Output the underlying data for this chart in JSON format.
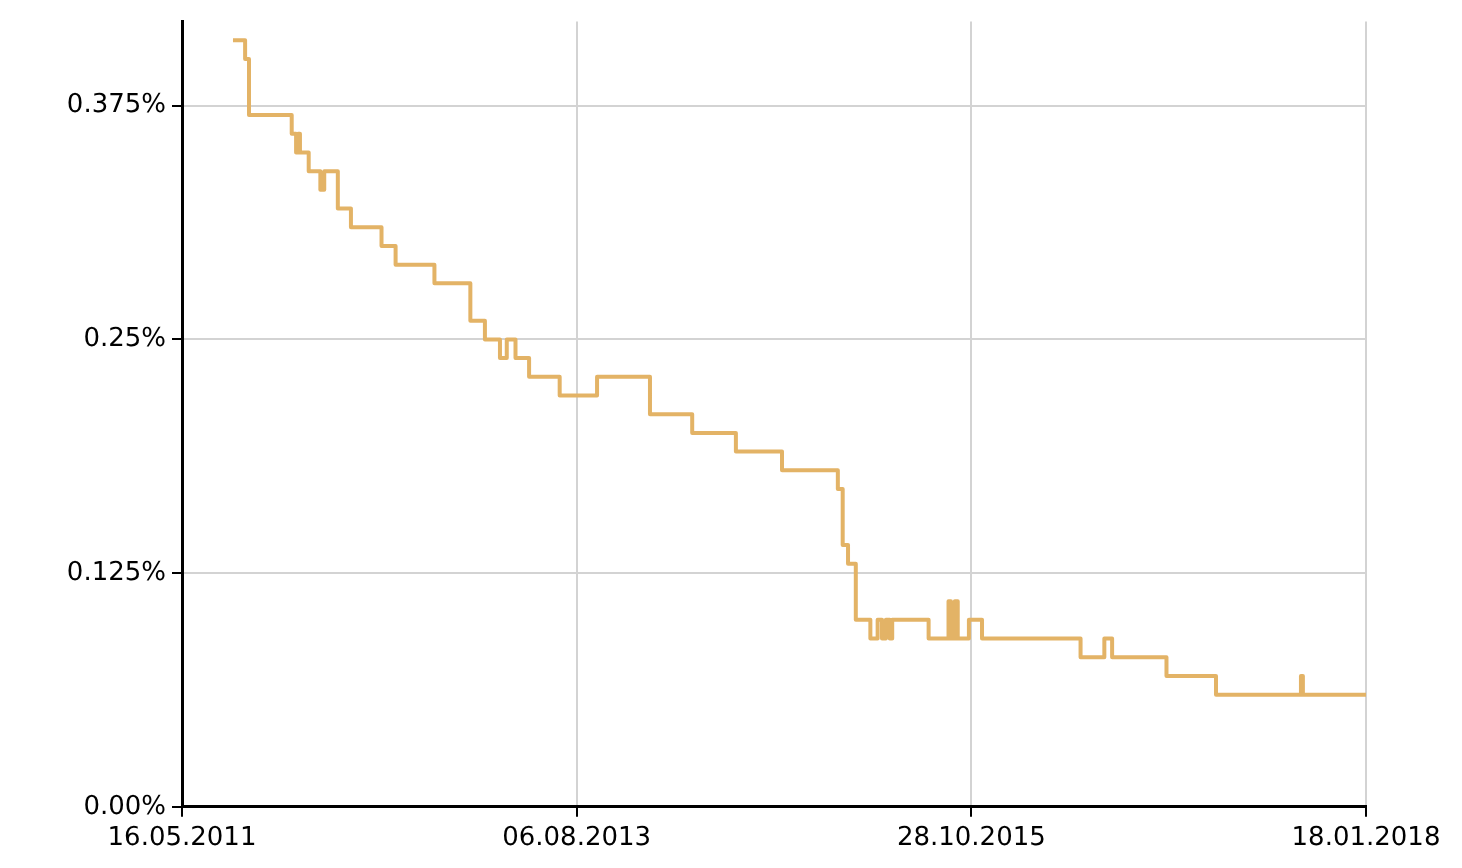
{
  "chart_data": {
    "type": "step",
    "color": "#e3b366",
    "line_style": "solid",
    "marker": "none",
    "grid": true,
    "legend": false,
    "x": [
      "2011-08-29",
      "2011-09-23",
      "2011-10-01",
      "2011-12-28",
      "2012-01-06",
      "2012-01-10",
      "2012-01-14",
      "2012-02-01",
      "2012-02-25",
      "2012-03-04",
      "2012-04-01",
      "2012-04-28",
      "2012-06-30",
      "2012-07-29",
      "2012-10-17",
      "2012-12-30",
      "2013-01-29",
      "2013-03-01",
      "2013-03-15",
      "2013-04-02",
      "2013-04-30",
      "2013-07-02",
      "2013-09-17",
      "2014-01-04",
      "2014-04-01",
      "2014-06-30",
      "2014-10-03",
      "2015-01-26",
      "2015-02-05",
      "2015-02-16",
      "2015-03-04",
      "2015-04-03",
      "2015-04-18",
      "2015-04-27",
      "2015-05-05",
      "2015-05-13",
      "2015-05-18",
      "2015-08-01",
      "2015-09-11",
      "2015-09-16",
      "2015-09-24",
      "2015-09-30",
      "2015-10-23",
      "2015-11-19",
      "2016-06-09",
      "2016-07-28",
      "2016-08-13",
      "2016-12-03",
      "2017-03-15",
      "2017-09-06",
      "2017-09-10",
      "2018-01-18"
    ],
    "values": [
      0.41,
      0.4,
      0.37,
      0.36,
      0.35,
      0.36,
      0.35,
      0.34,
      0.33,
      0.34,
      0.32,
      0.31,
      0.3,
      0.29,
      0.28,
      0.26,
      0.25,
      0.24,
      0.25,
      0.24,
      0.23,
      0.22,
      0.23,
      0.21,
      0.2,
      0.19,
      0.18,
      0.17,
      0.14,
      0.13,
      0.1,
      0.09,
      0.1,
      0.09,
      0.1,
      0.09,
      0.1,
      0.09,
      0.11,
      0.09,
      0.11,
      0.09,
      0.1,
      0.09,
      0.08,
      0.09,
      0.08,
      0.07,
      0.06,
      0.07,
      0.06,
      0.06
    ],
    "xlim": [
      "2011-05-16",
      "2018-01-18"
    ],
    "xticks": [
      {
        "value": "2011-05-16",
        "label": "16.05.2011"
      },
      {
        "value": "2013-08-06",
        "label": "06.08.2013"
      },
      {
        "value": "2015-10-28",
        "label": "28.10.2015"
      },
      {
        "value": "2018-01-18",
        "label": "18.01.2018"
      }
    ],
    "ylim": [
      0,
      0.42
    ],
    "yticks": [
      {
        "value": 0,
        "label": "0.00%"
      },
      {
        "value": 0.125,
        "label": "0.125%"
      },
      {
        "value": 0.25,
        "label": "0.25%"
      },
      {
        "value": 0.375,
        "label": "0.375%"
      }
    ]
  }
}
